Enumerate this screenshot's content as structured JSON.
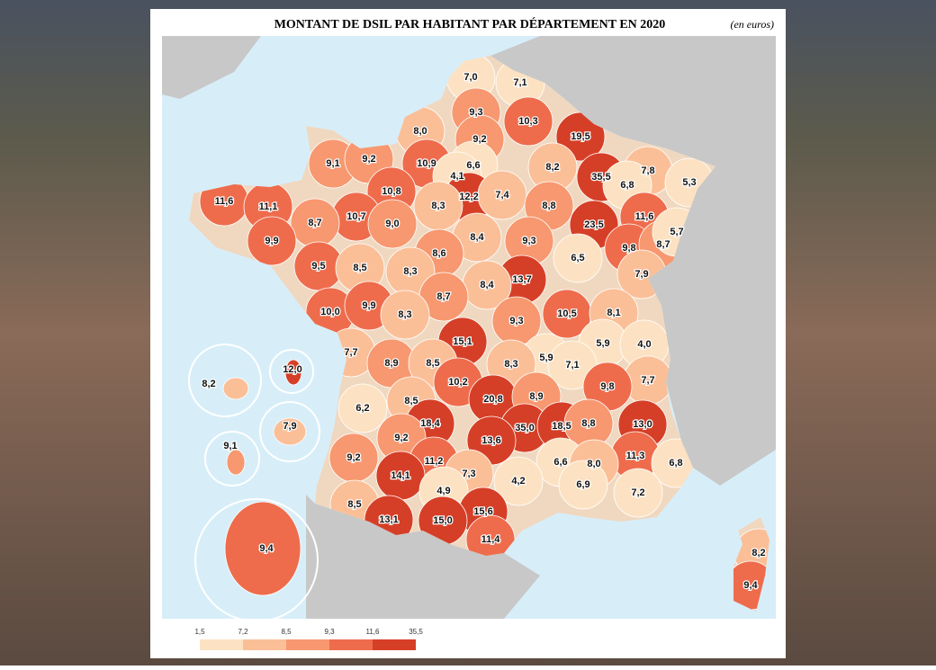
{
  "map": {
    "title": "MONTANT DE DSIL PAR HABITANT PAR DÉPARTEMENT EN 2020",
    "unit_note": "(en euros)",
    "legend": {
      "colors": [
        "#fce2c2",
        "#fbbf98",
        "#f79870",
        "#ee6c4c",
        "#d63f27"
      ],
      "breaks": [
        {
          "value": 1.5,
          "label": "1,5"
        },
        {
          "value": 7.2,
          "label": "7,2"
        },
        {
          "value": 8.5,
          "label": "8,5"
        },
        {
          "value": 9.3,
          "label": "9,3"
        },
        {
          "value": 11.6,
          "label": "11,6"
        },
        {
          "value": 35.5,
          "label": "35,5"
        }
      ]
    },
    "departments": [
      {
        "value": 7.0,
        "label": "7,0"
      },
      {
        "value": 7.1,
        "label": "7,1"
      },
      {
        "value": 9.3,
        "label": "9,3"
      },
      {
        "value": 10.3,
        "label": "10,3"
      },
      {
        "value": 19.5,
        "label": "19,5"
      },
      {
        "value": 8.0,
        "label": "8,0"
      },
      {
        "value": 9.2,
        "label": "9,2"
      },
      {
        "value": 9.1,
        "label": "9,1"
      },
      {
        "value": 9.2,
        "label": "9,2"
      },
      {
        "value": 10.9,
        "label": "10,9"
      },
      {
        "value": 6.6,
        "label": "6,6"
      },
      {
        "value": 4.1,
        "label": "4,1"
      },
      {
        "value": 8.2,
        "label": "8,2"
      },
      {
        "value": 35.5,
        "label": "35,5"
      },
      {
        "value": 7.8,
        "label": "7,8"
      },
      {
        "value": 5.3,
        "label": "5,3"
      },
      {
        "value": 6.8,
        "label": "6,8"
      },
      {
        "value": 12.2,
        "label": "12,2"
      },
      {
        "value": 7.4,
        "label": "7,4"
      },
      {
        "value": 10.8,
        "label": "10,8"
      },
      {
        "value": 11.6,
        "label": "11,6"
      },
      {
        "value": 11.1,
        "label": "11,1"
      },
      {
        "value": 10.7,
        "label": "10,7"
      },
      {
        "value": 8.3,
        "label": "8,3"
      },
      {
        "value": 8.8,
        "label": "8,8"
      },
      {
        "value": 23.5,
        "label": "23,5"
      },
      {
        "value": 11.6,
        "label": "11,6"
      },
      {
        "value": 8.7,
        "label": "8,7"
      },
      {
        "value": 9.0,
        "label": "9,0"
      },
      {
        "value": 8.4,
        "label": "8,4"
      },
      {
        "value": 9.9,
        "label": "9,9"
      },
      {
        "value": 9.3,
        "label": "9,3"
      },
      {
        "value": 9.8,
        "label": "9,8"
      },
      {
        "value": 8.7,
        "label": "8,7"
      },
      {
        "value": 5.7,
        "label": "5,7"
      },
      {
        "value": 6.5,
        "label": "6,5"
      },
      {
        "value": 8.6,
        "label": "8,6"
      },
      {
        "value": 9.5,
        "label": "9,5"
      },
      {
        "value": 8.5,
        "label": "8,5"
      },
      {
        "value": 8.3,
        "label": "8,3"
      },
      {
        "value": 7.9,
        "label": "7,9"
      },
      {
        "value": 13.7,
        "label": "13,7"
      },
      {
        "value": 8.4,
        "label": "8,4"
      },
      {
        "value": 8.7,
        "label": "8,7"
      },
      {
        "value": 10.0,
        "label": "10,0"
      },
      {
        "value": 9.9,
        "label": "9,9"
      },
      {
        "value": 8.3,
        "label": "8,3"
      },
      {
        "value": 10.5,
        "label": "10,5"
      },
      {
        "value": 8.1,
        "label": "8,1"
      },
      {
        "value": 9.3,
        "label": "9,3"
      },
      {
        "value": 15.1,
        "label": "15,1"
      },
      {
        "value": 5.9,
        "label": "5,9"
      },
      {
        "value": 4.0,
        "label": "4,0"
      },
      {
        "value": 7.7,
        "label": "7,7"
      },
      {
        "value": 8.9,
        "label": "8,9"
      },
      {
        "value": 8.5,
        "label": "8,5"
      },
      {
        "value": 5.9,
        "label": "5,9"
      },
      {
        "value": 7.1,
        "label": "7,1"
      },
      {
        "value": 8.3,
        "label": "8,3"
      },
      {
        "value": 10.2,
        "label": "10,2"
      },
      {
        "value": 7.7,
        "label": "7,7"
      },
      {
        "value": 9.8,
        "label": "9,8"
      },
      {
        "value": 20.8,
        "label": "20,8"
      },
      {
        "value": 8.9,
        "label": "8,9"
      },
      {
        "value": 6.2,
        "label": "6,2"
      },
      {
        "value": 8.5,
        "label": "8,5"
      },
      {
        "value": 18.4,
        "label": "18,4"
      },
      {
        "value": 35.0,
        "label": "35,0"
      },
      {
        "value": 18.5,
        "label": "18,5"
      },
      {
        "value": 8.8,
        "label": "8,8"
      },
      {
        "value": 13.0,
        "label": "13,0"
      },
      {
        "value": 13.6,
        "label": "13,6"
      },
      {
        "value": 9.2,
        "label": "9,2"
      },
      {
        "value": 9.2,
        "label": "9,2"
      },
      {
        "value": 11.2,
        "label": "11,2"
      },
      {
        "value": 11.3,
        "label": "11,3"
      },
      {
        "value": 6.6,
        "label": "6,6"
      },
      {
        "value": 8.0,
        "label": "8,0"
      },
      {
        "value": 6.8,
        "label": "6,8"
      },
      {
        "value": 7.3,
        "label": "7,3"
      },
      {
        "value": 14.1,
        "label": "14,1"
      },
      {
        "value": 4.2,
        "label": "4,2"
      },
      {
        "value": 6.9,
        "label": "6,9"
      },
      {
        "value": 4.9,
        "label": "4,9"
      },
      {
        "value": 7.2,
        "label": "7,2"
      },
      {
        "value": 8.5,
        "label": "8,5"
      },
      {
        "value": 15.6,
        "label": "15,6"
      },
      {
        "value": 15.0,
        "label": "15,0"
      },
      {
        "value": 13.1,
        "label": "13,1"
      },
      {
        "value": 11.4,
        "label": "11,4"
      },
      {
        "value": 8.2,
        "label": "8,2"
      },
      {
        "value": 9.4,
        "label": "9,4"
      }
    ],
    "overseas": [
      {
        "value": 8.2,
        "label": "8,2"
      },
      {
        "value": 12.0,
        "label": "12,0"
      },
      {
        "value": 7.9,
        "label": "7,9"
      },
      {
        "value": 9.1,
        "label": "9,1"
      },
      {
        "value": 9.4,
        "label": "9,4"
      }
    ]
  }
}
